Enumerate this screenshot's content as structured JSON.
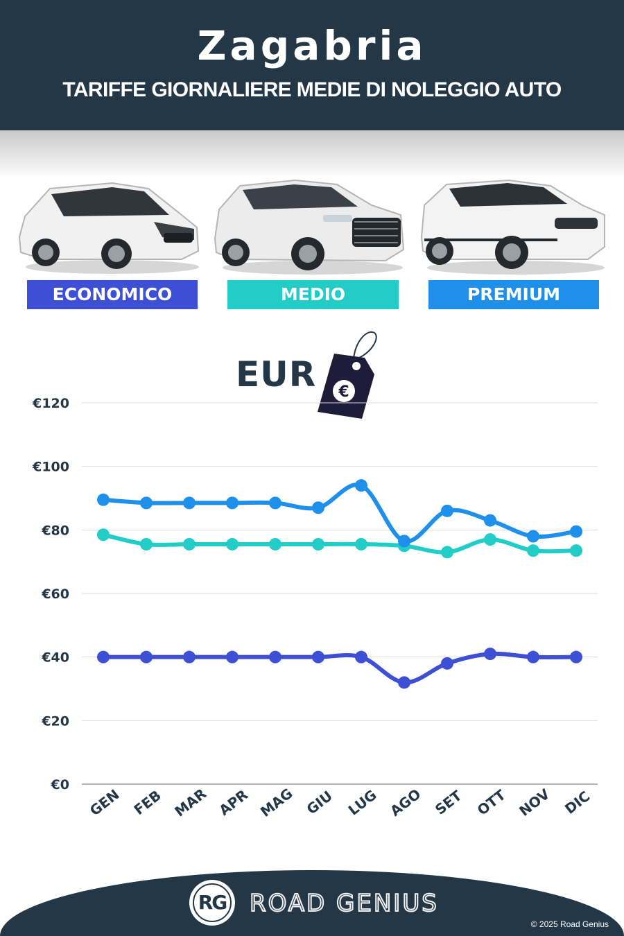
{
  "header": {
    "title": "Zagabria",
    "subtitle": "TARIFFE GIORNALIERE MEDIE DI NOLEGGIO AUTO"
  },
  "categories": [
    {
      "label": "ECONOMICO",
      "color": "#3d4fd4"
    },
    {
      "label": "MEDIO",
      "color": "#22cdc7"
    },
    {
      "label": "PREMIUM",
      "color": "#1e90ec"
    }
  ],
  "currency_label": "EUR",
  "tag_icon": "euro-price-tag-icon",
  "chart_data": {
    "type": "line",
    "title": "",
    "xlabel": "",
    "ylabel": "",
    "categories": [
      "GEN",
      "FEB",
      "MAR",
      "APR",
      "MAG",
      "GIU",
      "LUG",
      "AGO",
      "SET",
      "OTT",
      "NOV",
      "DIC"
    ],
    "y_ticks": [
      "€0",
      "€20",
      "€40",
      "€60",
      "€80",
      "€100",
      "€120"
    ],
    "ylim": [
      0,
      120
    ],
    "grid": true,
    "series": [
      {
        "name": "ECONOMICO",
        "color": "#3d4fd4",
        "values": [
          40,
          40,
          40,
          40,
          40,
          40,
          40,
          32,
          38,
          41,
          40,
          40
        ]
      },
      {
        "name": "MEDIO",
        "color": "#22cdc7",
        "values": [
          78.5,
          75.5,
          75.5,
          75.5,
          75.5,
          75.5,
          75.5,
          75,
          73,
          77,
          73.5,
          73.5
        ]
      },
      {
        "name": "PREMIUM",
        "color": "#1e90ec",
        "values": [
          89.5,
          88.5,
          88.5,
          88.5,
          88.5,
          87,
          94,
          76.5,
          86,
          83,
          78,
          79.5
        ]
      }
    ]
  },
  "footer": {
    "logo_text": "RG",
    "brand": "ROAD GENIUS",
    "copyright": "© 2025 Road Genius"
  }
}
